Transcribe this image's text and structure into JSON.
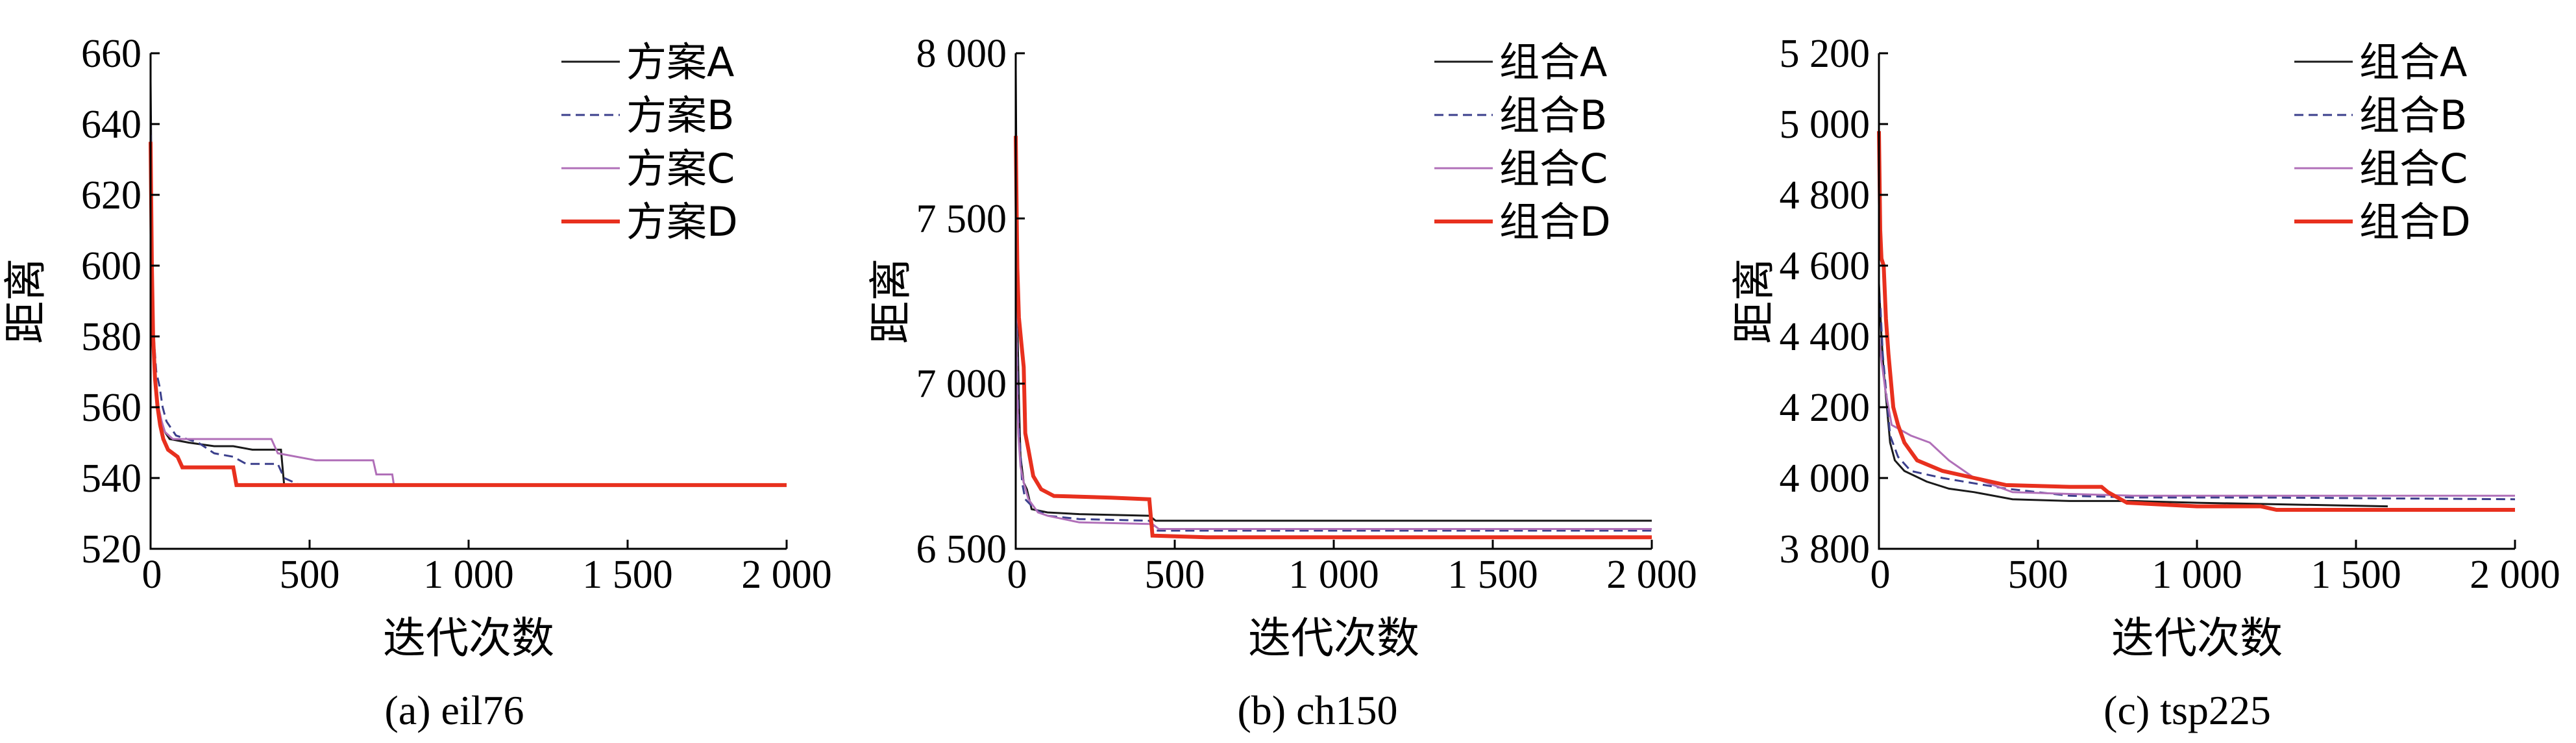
{
  "chart_data": [
    {
      "type": "line",
      "caption": "(a) eil76",
      "xlabel": "迭代次数",
      "ylabel": "距离",
      "xlim": [
        0,
        2000
      ],
      "ylim": [
        520,
        660
      ],
      "xticks": [
        0,
        500,
        1000,
        1500,
        2000
      ],
      "xtick_labels": [
        "0",
        "500",
        "1 000",
        "1 500",
        "2 000"
      ],
      "yticks": [
        520,
        540,
        560,
        580,
        600,
        620,
        640,
        660
      ],
      "ytick_labels": [
        "520",
        "540",
        "560",
        "580",
        "600",
        "620",
        "640",
        "660"
      ],
      "legend_position": "top-right",
      "series": [
        {
          "name": "方案A",
          "color": "#1a1a1a",
          "dash": "",
          "width": 3,
          "points": [
            [
              0,
              652
            ],
            [
              4,
              612
            ],
            [
              8,
              585
            ],
            [
              12,
              572
            ],
            [
              20,
              563
            ],
            [
              30,
              557
            ],
            [
              45,
              553
            ],
            [
              60,
              551
            ],
            [
              120,
              550
            ],
            [
              200,
              549
            ],
            [
              260,
              549
            ],
            [
              320,
              548
            ],
            [
              410,
              548
            ],
            [
              420,
              538
            ],
            [
              2000,
              538
            ]
          ]
        },
        {
          "name": "方案B",
          "color": "#3b3f8c",
          "dash": "14,8",
          "width": 3,
          "points": [
            [
              0,
              645
            ],
            [
              5,
              600
            ],
            [
              10,
              580
            ],
            [
              18,
              570
            ],
            [
              28,
              566
            ],
            [
              38,
              560
            ],
            [
              50,
              556
            ],
            [
              80,
              552
            ],
            [
              150,
              550
            ],
            [
              200,
              547
            ],
            [
              260,
              546
            ],
            [
              300,
              544
            ],
            [
              400,
              544
            ],
            [
              420,
              540
            ],
            [
              470,
              538
            ],
            [
              2000,
              538
            ]
          ]
        },
        {
          "name": "方案C",
          "color": "#b06fb8",
          "dash": "",
          "width": 3,
          "points": [
            [
              0,
              640
            ],
            [
              4,
              600
            ],
            [
              8,
              580
            ],
            [
              15,
              568
            ],
            [
              25,
              560
            ],
            [
              35,
              556
            ],
            [
              45,
              553
            ],
            [
              70,
              551
            ],
            [
              150,
              551
            ],
            [
              250,
              551
            ],
            [
              380,
              551
            ],
            [
              400,
              547
            ],
            [
              520,
              545
            ],
            [
              700,
              545
            ],
            [
              710,
              541
            ],
            [
              760,
              541
            ],
            [
              765,
              538
            ],
            [
              2000,
              538
            ]
          ]
        },
        {
          "name": "方案D",
          "color": "#e8301e",
          "dash": "",
          "width": 6,
          "points": [
            [
              0,
              635
            ],
            [
              4,
              600
            ],
            [
              8,
              580
            ],
            [
              14,
              568
            ],
            [
              22,
              560
            ],
            [
              30,
              555
            ],
            [
              40,
              551
            ],
            [
              55,
              548
            ],
            [
              85,
              546
            ],
            [
              100,
              543
            ],
            [
              260,
              543
            ],
            [
              270,
              538
            ],
            [
              2000,
              538
            ]
          ]
        }
      ]
    },
    {
      "type": "line",
      "caption": "(b) ch150",
      "xlabel": "迭代次数",
      "ylabel": "距离",
      "xlim": [
        0,
        2000
      ],
      "ylim": [
        6500,
        8000
      ],
      "xticks": [
        0,
        500,
        1000,
        1500,
        2000
      ],
      "xtick_labels": [
        "0",
        "500",
        "1 000",
        "1 500",
        "2 000"
      ],
      "yticks": [
        6500,
        7000,
        7500,
        8000
      ],
      "ytick_labels": [
        "6 500",
        "7 000",
        "7 500",
        "8 000"
      ],
      "legend_position": "top-right",
      "series": [
        {
          "name": "组合A",
          "color": "#1a1a1a",
          "dash": "",
          "width": 3,
          "points": [
            [
              0,
              7950
            ],
            [
              3,
              7500
            ],
            [
              6,
              7150
            ],
            [
              10,
              6950
            ],
            [
              15,
              6780
            ],
            [
              25,
              6700
            ],
            [
              35,
              6680
            ],
            [
              50,
              6620
            ],
            [
              100,
              6610
            ],
            [
              200,
              6605
            ],
            [
              420,
              6600
            ],
            [
              440,
              6585
            ],
            [
              2000,
              6585
            ]
          ]
        },
        {
          "name": "组合B",
          "color": "#3b3f8c",
          "dash": "14,8",
          "width": 3,
          "points": [
            [
              0,
              7600
            ],
            [
              4,
              7100
            ],
            [
              8,
              6900
            ],
            [
              14,
              6800
            ],
            [
              20,
              6700
            ],
            [
              30,
              6650
            ],
            [
              60,
              6620
            ],
            [
              100,
              6600
            ],
            [
              200,
              6590
            ],
            [
              420,
              6585
            ],
            [
              440,
              6555
            ],
            [
              2000,
              6555
            ]
          ]
        },
        {
          "name": "组合C",
          "color": "#b06fb8",
          "dash": "",
          "width": 3,
          "points": [
            [
              0,
              7400
            ],
            [
              4,
              7000
            ],
            [
              8,
              6850
            ],
            [
              15,
              6750
            ],
            [
              25,
              6700
            ],
            [
              40,
              6650
            ],
            [
              70,
              6610
            ],
            [
              100,
              6600
            ],
            [
              150,
              6590
            ],
            [
              200,
              6580
            ],
            [
              430,
              6575
            ],
            [
              450,
              6560
            ],
            [
              2000,
              6560
            ]
          ]
        },
        {
          "name": "组合D",
          "color": "#e8301e",
          "dash": "",
          "width": 6,
          "points": [
            [
              0,
              7750
            ],
            [
              5,
              7350
            ],
            [
              10,
              7200
            ],
            [
              18,
              7120
            ],
            [
              25,
              7050
            ],
            [
              30,
              6850
            ],
            [
              40,
              6800
            ],
            [
              55,
              6720
            ],
            [
              80,
              6680
            ],
            [
              120,
              6660
            ],
            [
              300,
              6655
            ],
            [
              420,
              6650
            ],
            [
              430,
              6540
            ],
            [
              600,
              6535
            ],
            [
              2000,
              6535
            ]
          ]
        }
      ]
    },
    {
      "type": "line",
      "caption": "(c) tsp225",
      "xlabel": "迭代次数",
      "ylabel": "距离",
      "xlim": [
        0,
        2000
      ],
      "ylim": [
        3800,
        5200
      ],
      "xticks": [
        0,
        500,
        1000,
        1500,
        2000
      ],
      "xtick_labels": [
        "0",
        "500",
        "1 000",
        "1 500",
        "2 000"
      ],
      "yticks": [
        3800,
        4000,
        4200,
        4400,
        4600,
        4800,
        5000,
        5200
      ],
      "ytick_labels": [
        "3 800",
        "4 000",
        "4 200",
        "4 400",
        "4 600",
        "4 800",
        "5 000",
        "5 200"
      ],
      "legend_position": "top-right",
      "series": [
        {
          "name": "组合A",
          "color": "#1a1a1a",
          "dash": "",
          "width": 3,
          "points": [
            [
              0,
              4550
            ],
            [
              8,
              4400
            ],
            [
              15,
              4300
            ],
            [
              25,
              4200
            ],
            [
              35,
              4100
            ],
            [
              50,
              4050
            ],
            [
              80,
              4020
            ],
            [
              150,
              3990
            ],
            [
              220,
              3970
            ],
            [
              300,
              3960
            ],
            [
              420,
              3940
            ],
            [
              600,
              3935
            ],
            [
              800,
              3935
            ],
            [
              1000,
              3930
            ],
            [
              1600,
              3920
            ]
          ]
        },
        {
          "name": "组合B",
          "color": "#3b3f8c",
          "dash": "14,8",
          "width": 3,
          "points": [
            [
              0,
              4520
            ],
            [
              5,
              4480
            ],
            [
              12,
              4350
            ],
            [
              22,
              4250
            ],
            [
              35,
              4120
            ],
            [
              60,
              4060
            ],
            [
              100,
              4020
            ],
            [
              200,
              4000
            ],
            [
              400,
              3970
            ],
            [
              600,
              3950
            ],
            [
              800,
              3945
            ],
            [
              1200,
              3945
            ],
            [
              2000,
              3940
            ]
          ]
        },
        {
          "name": "组合C",
          "color": "#b06fb8",
          "dash": "",
          "width": 3,
          "points": [
            [
              0,
              4400
            ],
            [
              8,
              4330
            ],
            [
              20,
              4250
            ],
            [
              40,
              4150
            ],
            [
              60,
              4140
            ],
            [
              100,
              4120
            ],
            [
              160,
              4100
            ],
            [
              220,
              4050
            ],
            [
              300,
              4000
            ],
            [
              420,
              3960
            ],
            [
              600,
              3955
            ],
            [
              800,
              3950
            ],
            [
              1200,
              3950
            ],
            [
              2000,
              3950
            ]
          ]
        },
        {
          "name": "组合D",
          "color": "#e8301e",
          "dash": "",
          "width": 6,
          "points": [
            [
              0,
              4980
            ],
            [
              4,
              4700
            ],
            [
              8,
              4620
            ],
            [
              15,
              4600
            ],
            [
              22,
              4450
            ],
            [
              30,
              4350
            ],
            [
              45,
              4200
            ],
            [
              60,
              4150
            ],
            [
              80,
              4100
            ],
            [
              120,
              4050
            ],
            [
              200,
              4020
            ],
            [
              300,
              4000
            ],
            [
              400,
              3980
            ],
            [
              600,
              3975
            ],
            [
              700,
              3975
            ],
            [
              720,
              3960
            ],
            [
              780,
              3930
            ],
            [
              1000,
              3920
            ],
            [
              1200,
              3920
            ],
            [
              1250,
              3910
            ],
            [
              2000,
              3910
            ]
          ]
        }
      ]
    }
  ]
}
